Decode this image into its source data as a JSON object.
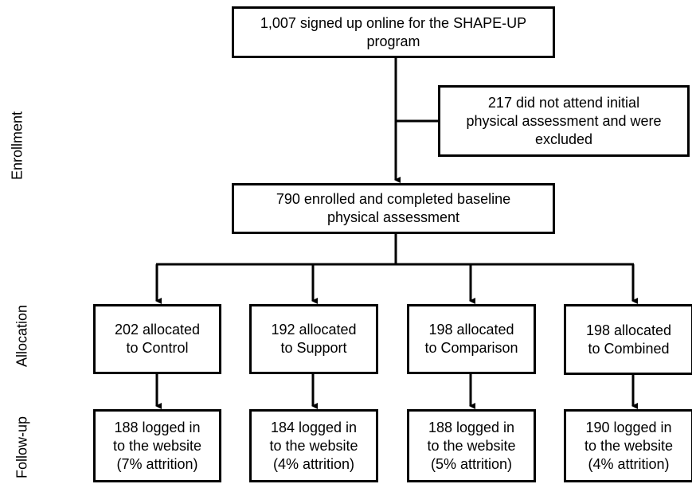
{
  "side_labels": [
    "Enrollment",
    "Allocation",
    "Follow-up"
  ],
  "boxes": [
    {
      "lines": [
        "1,007 signed up online for the SHAPE-UP",
        "program"
      ]
    },
    {
      "lines": [
        "217 did not attend initial",
        "physical assessment and were",
        "excluded"
      ]
    },
    {
      "lines": [
        "790 enrolled and completed baseline",
        "physical assessment"
      ]
    },
    {
      "lines": [
        "202 allocated",
        "to Control"
      ]
    },
    {
      "lines": [
        "192 allocated",
        "to Support"
      ]
    },
    {
      "lines": [
        "198 allocated",
        "to Comparison"
      ]
    },
    {
      "lines": [
        "198 allocated",
        "to Combined"
      ]
    },
    {
      "lines": [
        "188 logged in",
        "to the website",
        "(7% attrition)"
      ]
    },
    {
      "lines": [
        "184 logged in",
        "to the website",
        "(4% attrition)"
      ]
    },
    {
      "lines": [
        "188 logged in",
        "to the website",
        "(5% attrition)"
      ]
    },
    {
      "lines": [
        "190 logged in",
        "to the website",
        "(4% attrition)"
      ]
    }
  ]
}
